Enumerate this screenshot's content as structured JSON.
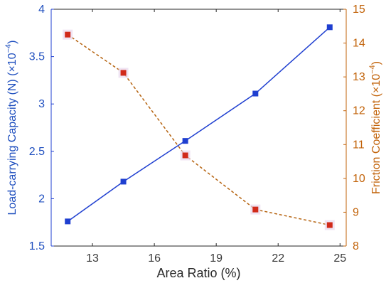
{
  "chart_data": {
    "type": "line",
    "xlabel": "Area Ratio (%)",
    "xlim": [
      11,
      25.3
    ],
    "xticks": [
      13,
      16,
      19,
      22,
      25
    ],
    "y_left": {
      "label_main": "Load-carrying Capacity (N) (",
      "label_mult": "×10",
      "label_exp": "−4",
      "label_close": ")",
      "lim": [
        1.5,
        4
      ],
      "ticks": [
        "1.5",
        "2",
        "2.5",
        "3",
        "3.5",
        "4"
      ],
      "color": "#1f3fd0"
    },
    "y_right": {
      "label_main": "Friction Coefficient (",
      "label_mult": "×10",
      "label_exp": "−4",
      "label_close": ")",
      "lim": [
        8,
        15
      ],
      "ticks": [
        "8",
        "9",
        "10",
        "11",
        "12",
        "13",
        "14",
        "15"
      ],
      "color": "#c2630a"
    },
    "series": [
      {
        "axis": "left",
        "style": "solid",
        "color": "#1f3fd0",
        "marker_color": "#1f3fd0",
        "x": [
          11.8,
          14.5,
          17.5,
          20.9,
          24.5
        ],
        "y": [
          1.76,
          2.18,
          2.61,
          3.11,
          3.81
        ]
      },
      {
        "axis": "right",
        "style": "dashed",
        "color": "#b5620e",
        "marker_color": "#d12a1a",
        "x": [
          11.8,
          14.5,
          17.5,
          20.9,
          24.5
        ],
        "y": [
          14.25,
          13.12,
          10.68,
          9.08,
          8.62
        ]
      }
    ]
  }
}
